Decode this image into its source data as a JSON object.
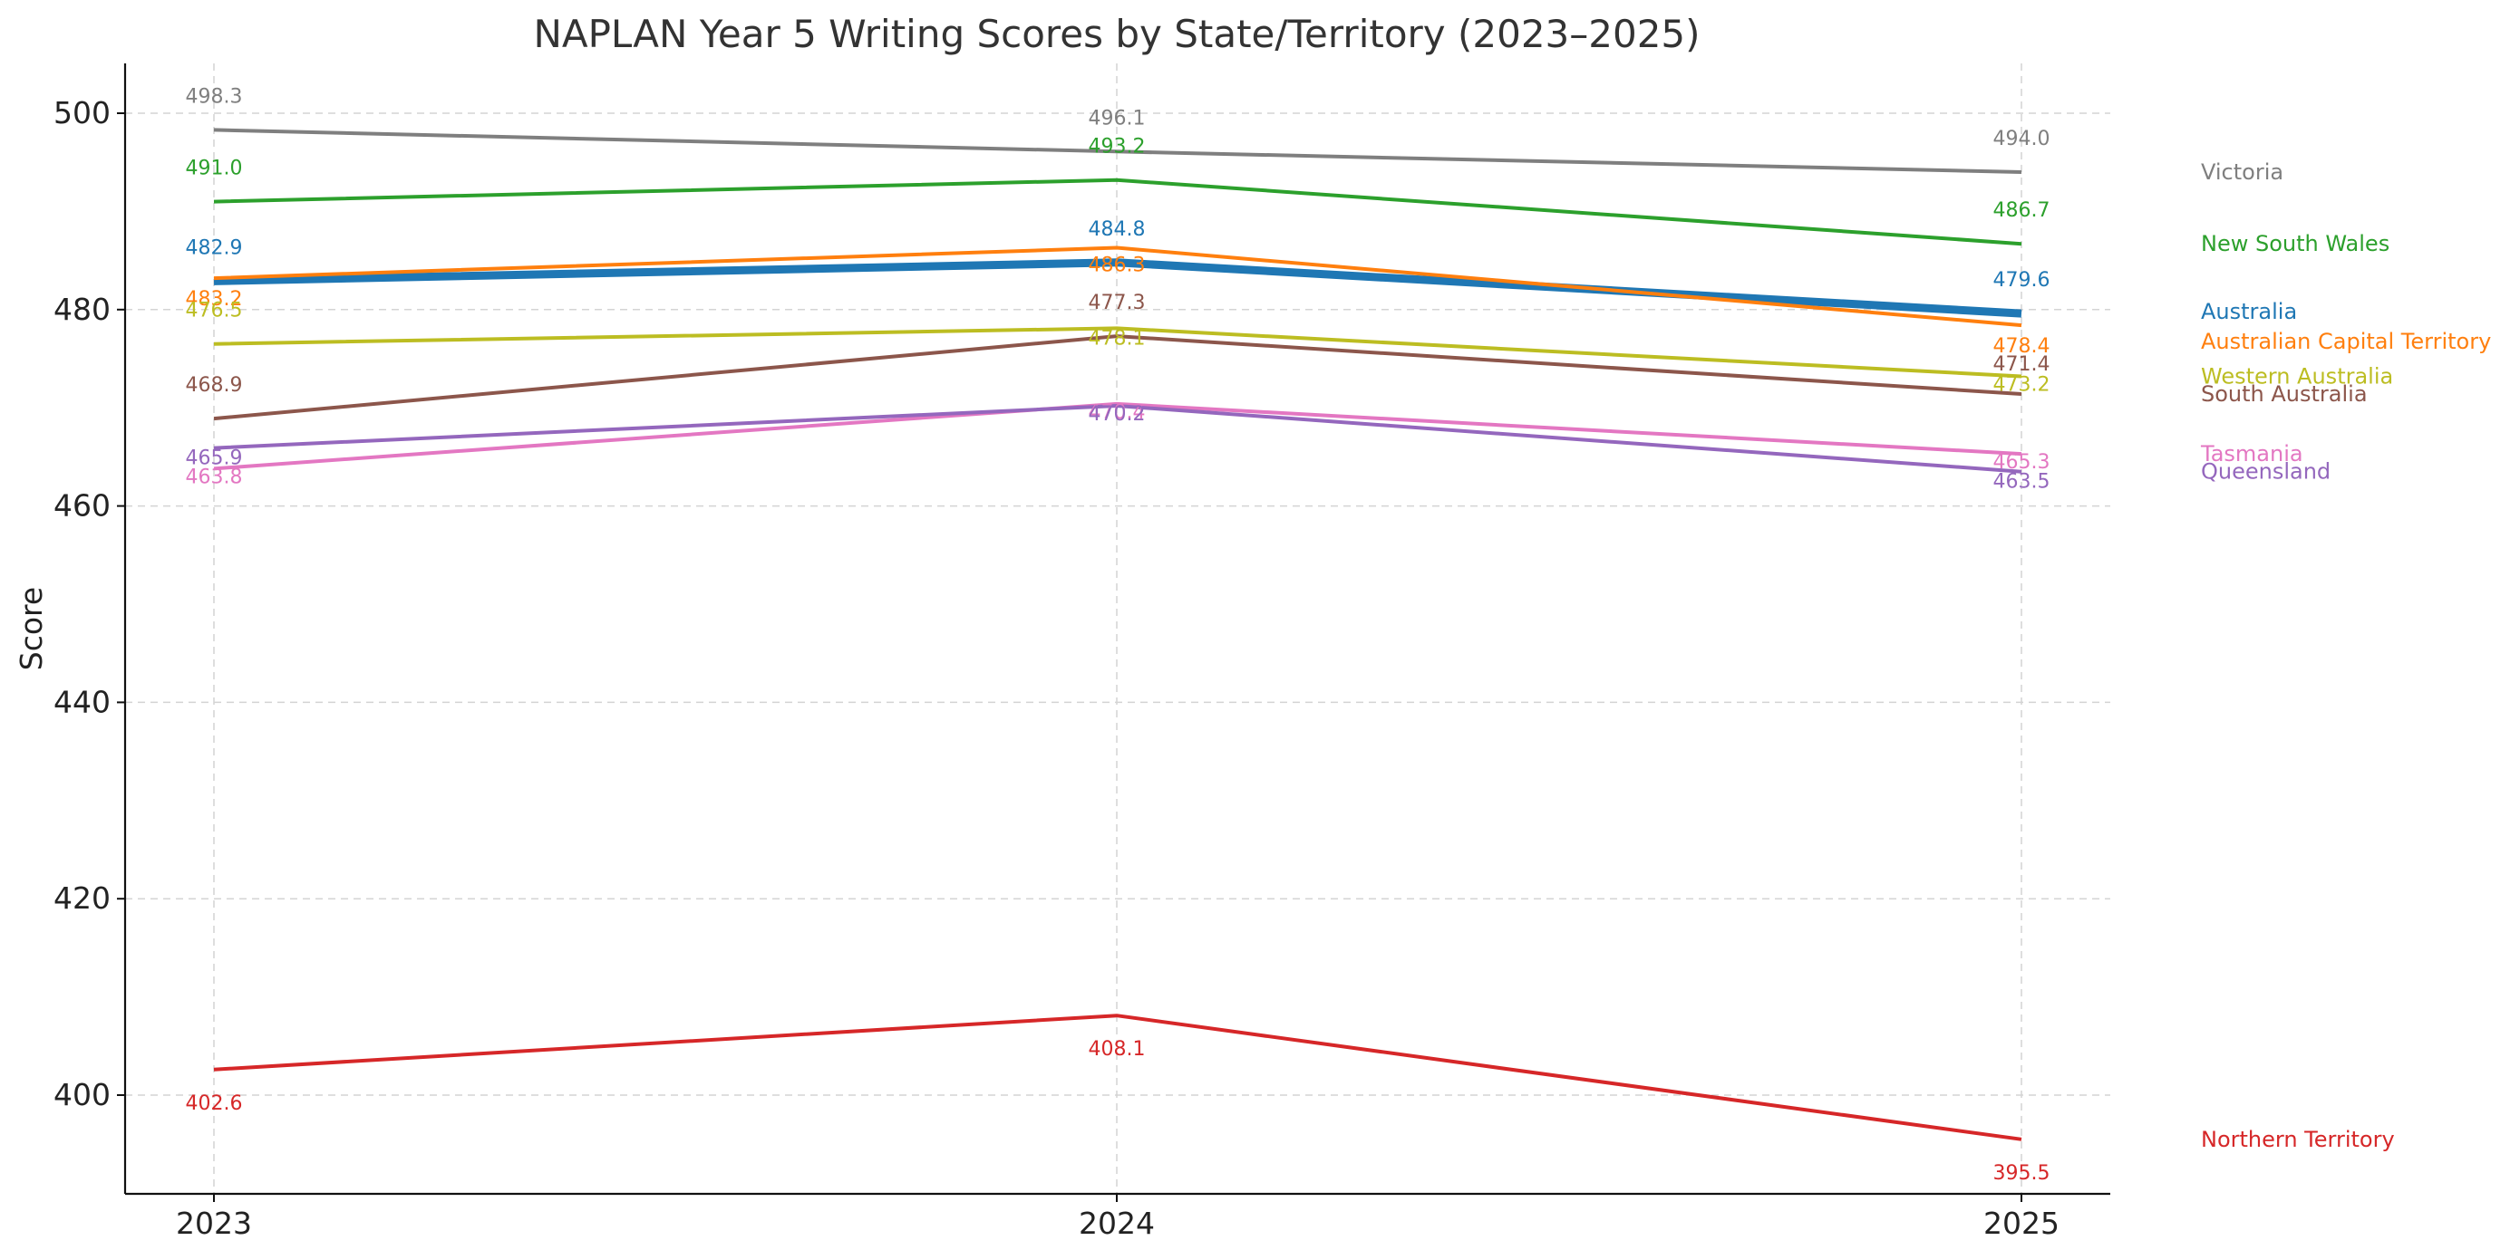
{
  "chart_data": {
    "type": "line",
    "title": "NAPLAN Year 5 Writing Scores by State/Territory (2023–2025)",
    "xlabel": "",
    "ylabel": "Score",
    "x": [
      "2023",
      "2024",
      "2025"
    ],
    "ylim": [
      390,
      505
    ],
    "yticks": [
      400,
      420,
      440,
      460,
      480,
      500
    ],
    "grid": true,
    "legend_placement": "right (labels at line ends)",
    "series": [
      {
        "name": "Victoria",
        "values": [
          498.3,
          496.1,
          494.0
        ],
        "color": "#7f7f7f"
      },
      {
        "name": "New South Wales",
        "values": [
          491.0,
          493.2,
          486.7
        ],
        "color": "#2ca02c"
      },
      {
        "name": "Australia",
        "values": [
          482.9,
          484.8,
          479.6
        ],
        "color": "#1f77b4",
        "emphasis": true
      },
      {
        "name": "Australian Capital Territory",
        "values": [
          483.2,
          486.3,
          478.4
        ],
        "color": "#ff7f0e"
      },
      {
        "name": "Western Australia",
        "values": [
          476.5,
          478.1,
          473.2
        ],
        "color": "#bcbd22"
      },
      {
        "name": "South Australia",
        "values": [
          468.9,
          477.3,
          471.4
        ],
        "color": "#8c564b"
      },
      {
        "name": "Tasmania",
        "values": [
          463.8,
          470.4,
          465.3
        ],
        "color": "#e377c2"
      },
      {
        "name": "Queensland",
        "values": [
          465.9,
          470.2,
          463.5
        ],
        "color": "#9467bd"
      },
      {
        "name": "Northern Territory",
        "values": [
          402.6,
          408.1,
          395.5
        ],
        "color": "#d62728"
      }
    ]
  }
}
